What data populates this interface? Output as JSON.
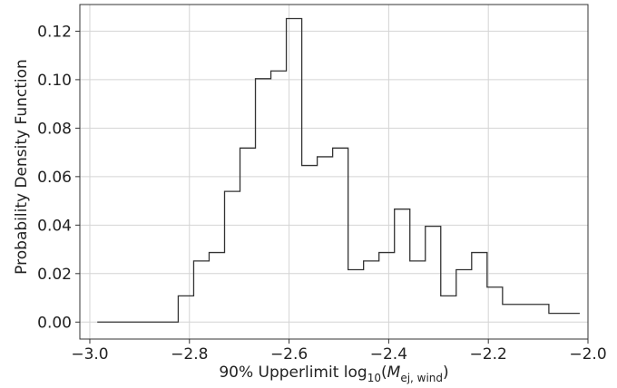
{
  "chart_data": {
    "type": "histogram",
    "title": "",
    "xlabel": "90% Upperlimit log",
    "xlabel_subscript": "10",
    "xlabel_open": "(",
    "xlabel_var": "M",
    "xlabel_var_subscript": "ej, wind",
    "xlabel_close": ")",
    "ylabel": "Probability Density Function",
    "xlim": [
      -3.02,
      -2.0
    ],
    "ylim": [
      -0.007,
      0.131
    ],
    "xticks": [
      -3.0,
      -2.8,
      -2.6,
      -2.4,
      -2.2,
      -2.0
    ],
    "xtick_labels": [
      "−3.0",
      "−2.8",
      "−2.6",
      "−2.4",
      "−2.2",
      "−2.0"
    ],
    "yticks": [
      0.0,
      0.02,
      0.04,
      0.06,
      0.08,
      0.1,
      0.12
    ],
    "ytick_labels": [
      "0.00",
      "0.02",
      "0.04",
      "0.06",
      "0.08",
      "0.10",
      "0.12"
    ],
    "grid": true,
    "color": "#333333",
    "bin_edges": [
      -2.985,
      -2.8225,
      -2.7915,
      -2.7605,
      -2.7295,
      -2.6985,
      -2.6675,
      -2.6365,
      -2.6055,
      -2.5745,
      -2.5435,
      -2.5125,
      -2.4815,
      -2.4505,
      -2.4195,
      -2.3885,
      -2.3575,
      -2.3265,
      -2.2955,
      -2.2645,
      -2.2335,
      -2.2025,
      -2.1715,
      -2.1405,
      -2.1095,
      -2.0785,
      -2.0475,
      -2.0165
    ],
    "values": [
      0.0,
      0.0108,
      0.0252,
      0.0287,
      0.0539,
      0.0718,
      0.1004,
      0.1036,
      0.1252,
      0.0646,
      0.0682,
      0.0718,
      0.0216,
      0.0252,
      0.0287,
      0.0466,
      0.0252,
      0.0395,
      0.0108,
      0.0216,
      0.0287,
      0.0144,
      0.0073,
      0.0073,
      0.0073,
      0.0036,
      0.0036
    ]
  }
}
